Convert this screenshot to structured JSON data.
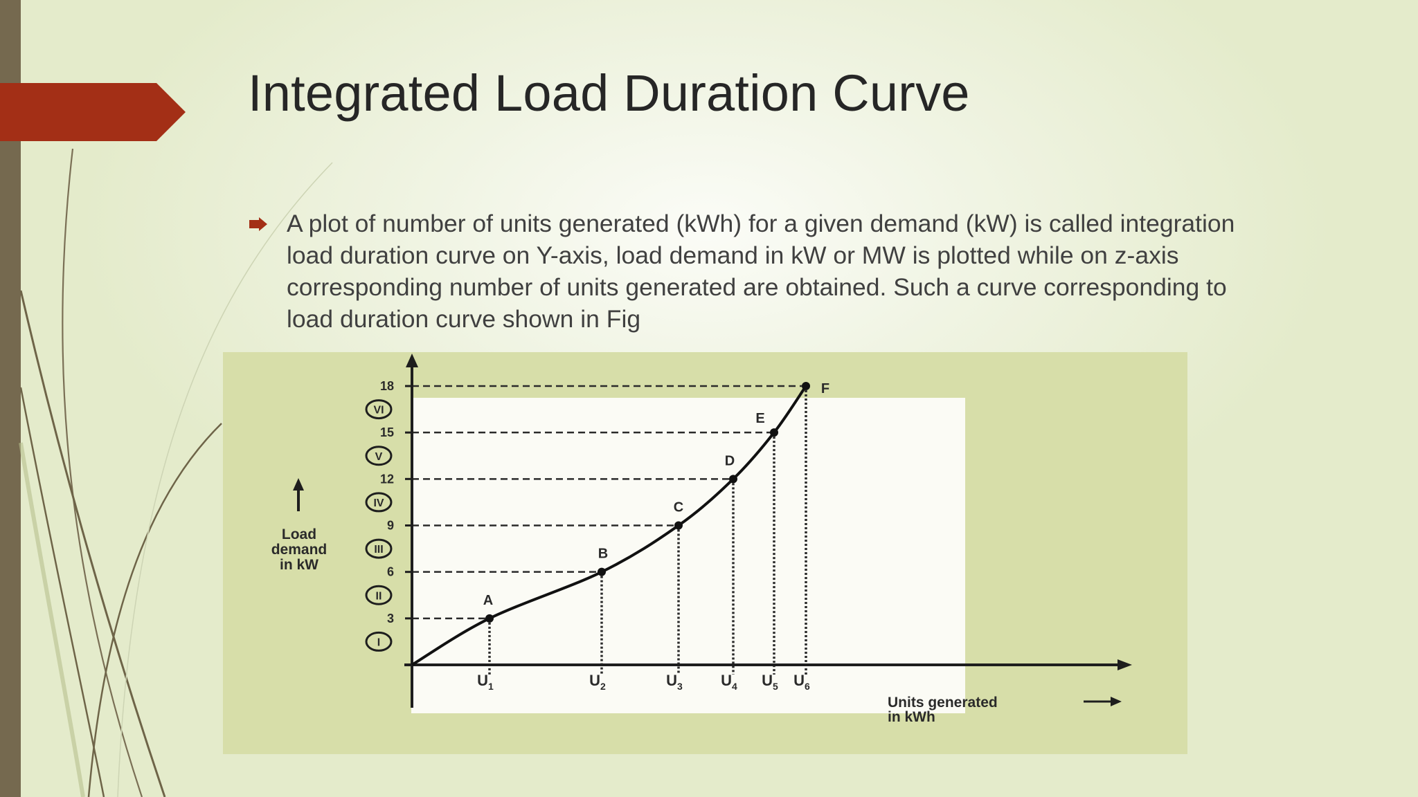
{
  "slide": {
    "title": "Integrated Load Duration Curve",
    "bullet_icon": "right-arrow-bullet-icon",
    "bullet_text": "A plot of number of units generated (kWh) for a given demand (kW) is called integration load duration curve on Y-axis, load demand in kW or MW is plotted while on z-axis corresponding number of units generated are obtained. Such a curve corresponding to load duration curve shown in Fig",
    "colors": {
      "title_marker": "#a32f16",
      "side_bar": "#75694f",
      "figure_bg": "#d7dea9"
    }
  },
  "figure": {
    "y_label_lines": [
      "Load",
      "demand",
      "in kW"
    ],
    "x_label_lines": [
      "Units generated",
      "in kWh"
    ],
    "y_ticks": [
      "3",
      "6",
      "9",
      "12",
      "15",
      "18"
    ],
    "zones": [
      "I",
      "II",
      "III",
      "IV",
      "V",
      "VI"
    ],
    "point_labels": [
      "A",
      "B",
      "C",
      "D",
      "E",
      "F"
    ],
    "x_ticks": [
      {
        "letter": "U",
        "sub": "1"
      },
      {
        "letter": "U",
        "sub": "2"
      },
      {
        "letter": "U",
        "sub": "3"
      },
      {
        "letter": "U",
        "sub": "4"
      },
      {
        "letter": "U",
        "sub": "5"
      },
      {
        "letter": "U",
        "sub": "6"
      }
    ]
  },
  "chart_data": {
    "type": "line",
    "title": "",
    "xlabel": "Units generated in kWh",
    "ylabel": "Load demand in kW",
    "ylim": [
      0,
      18
    ],
    "y_ticks": [
      3,
      6,
      9,
      12,
      15,
      18
    ],
    "x_categories": [
      "U1",
      "U2",
      "U3",
      "U4",
      "U5",
      "U6"
    ],
    "series": [
      {
        "points": [
          {
            "label": "A",
            "x": "U1",
            "y": 3
          },
          {
            "label": "B",
            "x": "U2",
            "y": 6
          },
          {
            "label": "C",
            "x": "U3",
            "y": 9
          },
          {
            "label": "D",
            "x": "U4",
            "y": 12
          },
          {
            "label": "E",
            "x": "U5",
            "y": 15
          },
          {
            "label": "F",
            "x": "U6",
            "y": 18
          }
        ]
      }
    ],
    "grid": false
  }
}
